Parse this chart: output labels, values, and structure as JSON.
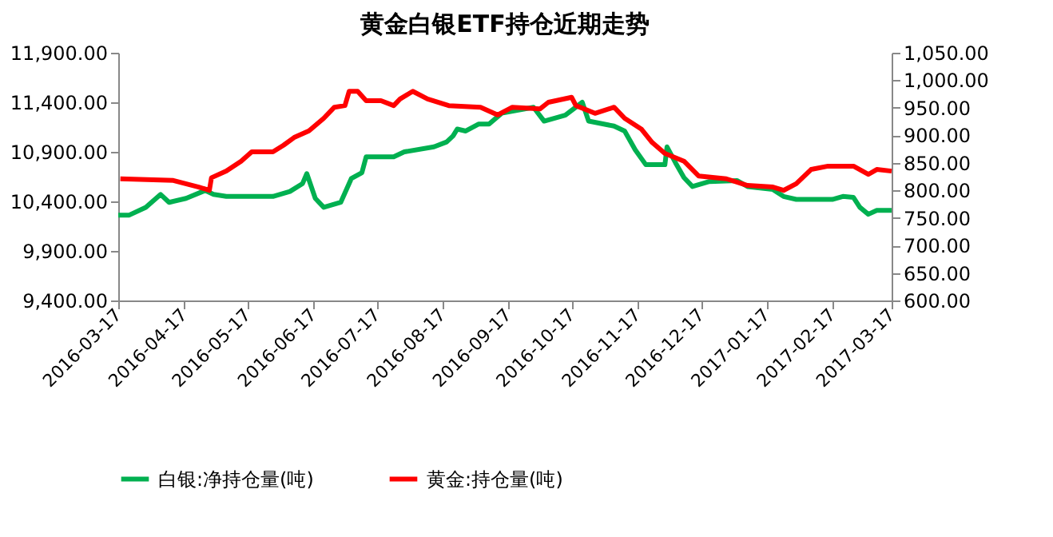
{
  "chart_data": {
    "type": "line",
    "title": "黄金白银ETF持仓近期走势",
    "legend": "bottom",
    "grid": false,
    "marker": "none",
    "line_style": "solid",
    "xlim": [
      "2016-03-17",
      "2017-03-17"
    ],
    "xticks": [
      "2016-03-17",
      "2016-04-17",
      "2016-05-17",
      "2016-06-17",
      "2016-07-17",
      "2016-08-17",
      "2016-09-17",
      "2016-10-17",
      "2016-11-17",
      "2016-12-17",
      "2017-01-17",
      "2017-02-17",
      "2017-03-17"
    ],
    "ylim": [
      9400,
      11900
    ],
    "yticks": [
      {
        "value": 9400,
        "label": "9,400.00"
      },
      {
        "value": 9900,
        "label": "9,900.00"
      },
      {
        "value": 10400,
        "label": "10,400.00"
      },
      {
        "value": 10900,
        "label": "10,900.00"
      },
      {
        "value": 11400,
        "label": "11,400.00"
      },
      {
        "value": 11900,
        "label": "11,900.00"
      }
    ],
    "y2lim": [
      600,
      1050
    ],
    "y2ticks": [
      {
        "value": 600,
        "label": "600.00"
      },
      {
        "value": 650,
        "label": "650.00"
      },
      {
        "value": 700,
        "label": "700.00"
      },
      {
        "value": 750,
        "label": "750.00"
      },
      {
        "value": 800,
        "label": "800.00"
      },
      {
        "value": 850,
        "label": "850.00"
      },
      {
        "value": 900,
        "label": "900.00"
      },
      {
        "value": 950,
        "label": "950.00"
      },
      {
        "value": 1000,
        "label": "1,000.00"
      },
      {
        "value": 1050,
        "label": "1,050.00"
      }
    ],
    "series": [
      {
        "name": "白银:净持仓量(吨)",
        "color": "#00b050",
        "x": [
          "2016-03-17",
          "2016-03-22",
          "2016-03-30",
          "2016-04-06",
          "2016-04-10",
          "2016-04-18",
          "2016-04-27",
          "2016-05-01",
          "2016-05-07",
          "2016-05-29",
          "2016-06-06",
          "2016-06-12",
          "2016-06-14",
          "2016-06-18",
          "2016-06-22",
          "2016-06-30",
          "2016-07-05",
          "2016-07-10",
          "2016-07-12",
          "2016-07-25",
          "2016-07-30",
          "2016-08-13",
          "2016-08-19",
          "2016-08-22",
          "2016-08-24",
          "2016-08-28",
          "2016-09-03",
          "2016-09-08",
          "2016-09-14",
          "2016-09-29",
          "2016-10-04",
          "2016-10-14",
          "2016-10-22",
          "2016-10-25",
          "2016-11-06",
          "2016-11-11",
          "2016-11-16",
          "2016-11-21",
          "2016-11-30",
          "2016-12-01",
          "2016-12-05",
          "2016-12-09",
          "2016-12-13",
          "2016-12-21",
          "2017-01-03",
          "2017-01-08",
          "2017-01-20",
          "2017-01-25",
          "2017-01-31",
          "2017-02-17",
          "2017-02-22",
          "2017-02-27",
          "2017-03-02",
          "2017-03-06",
          "2017-03-10",
          "2017-03-17"
        ],
        "values": [
          10260,
          10260,
          10340,
          10470,
          10390,
          10430,
          10510,
          10470,
          10450,
          10450,
          10500,
          10580,
          10680,
          10430,
          10340,
          10390,
          10630,
          10690,
          10850,
          10850,
          10900,
          10950,
          11000,
          11060,
          11130,
          11110,
          11180,
          11180,
          11290,
          11350,
          11210,
          11270,
          11400,
          11210,
          11160,
          11110,
          10920,
          10770,
          10770,
          10950,
          10790,
          10640,
          10550,
          10600,
          10610,
          10550,
          10520,
          10450,
          10420,
          10420,
          10450,
          10440,
          10340,
          10270,
          10310,
          10310
        ]
      },
      {
        "name": "黄金:持仓量(吨)",
        "color": "#ff0000",
        "axis": "y2",
        "x": [
          "2016-03-18",
          "2016-04-12",
          "2016-04-24",
          "2016-04-29",
          "2016-04-30",
          "2016-05-07",
          "2016-05-14",
          "2016-05-19",
          "2016-05-29",
          "2016-06-03",
          "2016-06-08",
          "2016-06-15",
          "2016-06-22",
          "2016-06-27",
          "2016-07-02",
          "2016-07-04",
          "2016-07-08",
          "2016-07-12",
          "2016-07-19",
          "2016-07-25",
          "2016-07-28",
          "2016-08-03",
          "2016-08-10",
          "2016-08-20",
          "2016-09-04",
          "2016-09-12",
          "2016-09-19",
          "2016-10-02",
          "2016-10-06",
          "2016-10-17",
          "2016-10-19",
          "2016-10-28",
          "2016-11-06",
          "2016-11-11",
          "2016-11-19",
          "2016-11-24",
          "2016-11-30",
          "2016-12-09",
          "2016-12-16",
          "2016-12-29",
          "2017-01-08",
          "2017-01-20",
          "2017-01-25",
          "2017-01-31",
          "2017-02-07",
          "2017-02-15",
          "2017-02-27",
          "2017-03-06",
          "2017-03-10",
          "2017-03-17"
        ],
        "values": [
          821,
          818,
          806,
          800,
          823,
          835,
          853,
          870,
          870,
          882,
          896,
          908,
          931,
          951,
          954,
          980,
          980,
          963,
          963,
          954,
          966,
          980,
          966,
          954,
          951,
          937,
          951,
          948,
          960,
          969,
          954,
          940,
          951,
          931,
          911,
          887,
          867,
          853,
          826,
          821,
          809,
          806,
          800,
          812,
          838,
          844,
          844,
          829,
          838,
          835
        ]
      }
    ]
  }
}
